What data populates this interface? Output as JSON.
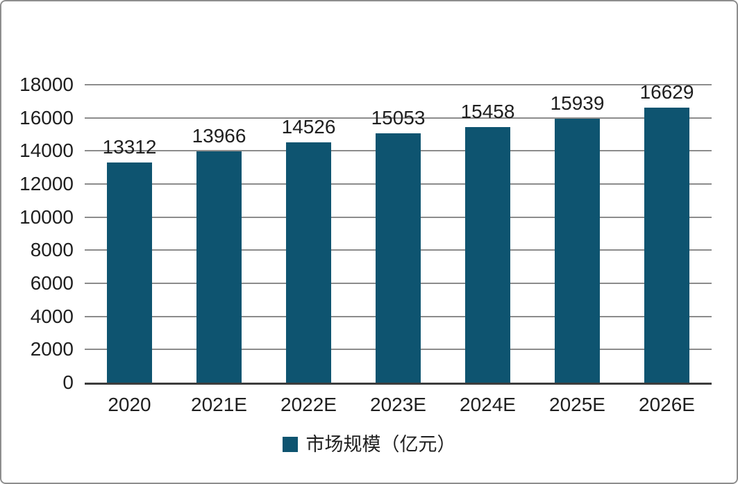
{
  "chart_data": {
    "type": "bar",
    "title": "",
    "categories": [
      "2020",
      "2021E",
      "2022E",
      "2023E",
      "2024E",
      "2025E",
      "2026E"
    ],
    "values": [
      13312,
      13966,
      14526,
      15053,
      15458,
      15939,
      16629
    ],
    "series_name": "市场规模（亿元）",
    "xlabel": "",
    "ylabel": "",
    "ylim": [
      0,
      18000
    ],
    "yticks": [
      0,
      2000,
      4000,
      6000,
      8000,
      10000,
      12000,
      14000,
      16000,
      18000
    ],
    "grid": true,
    "show_value_labels": true,
    "legend_position": "bottom",
    "bar_color": "#0E5470",
    "grid_color": "#8C8C8C",
    "axis_color": "#3C3C3C",
    "text_color": "#1F1F1F"
  },
  "legend": {
    "label": "市场规模（亿元）"
  }
}
